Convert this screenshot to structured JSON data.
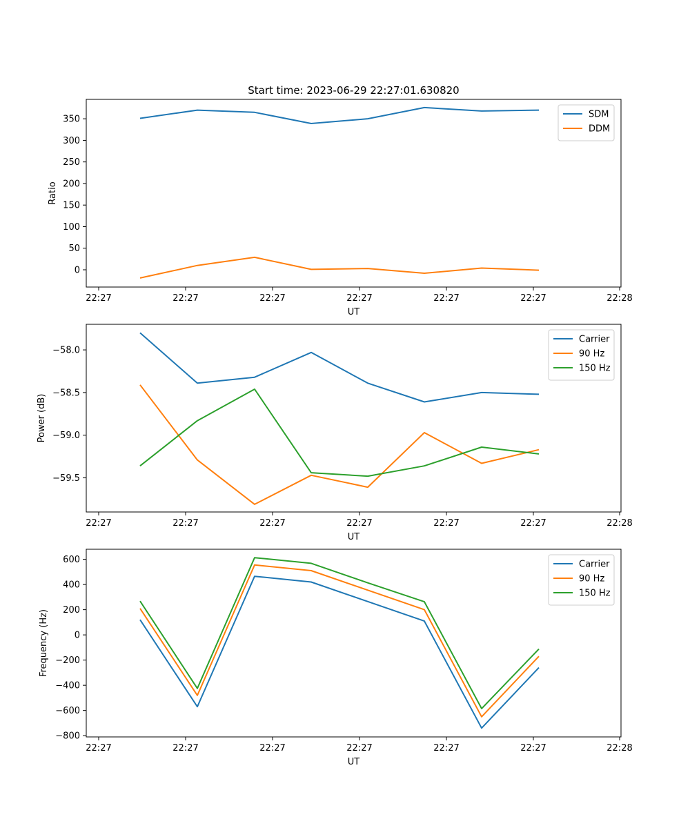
{
  "figure": {
    "title": "Start time: 2023-06-29 22:27:01.630820"
  },
  "chart_data": [
    {
      "type": "line",
      "title": "Start time: 2023-06-29 22:27:01.630820",
      "xlabel": "UT",
      "ylabel": "Ratio",
      "x_tick_labels": [
        "22:27",
        "22:27",
        "22:27",
        "22:27",
        "22:27",
        "22:27",
        "22:28"
      ],
      "y_ticks": [
        0,
        50,
        100,
        150,
        200,
        250,
        300,
        350
      ],
      "ylim": [
        -40,
        395
      ],
      "grid": false,
      "legend_position": "upper right",
      "series": [
        {
          "name": "SDM",
          "color": "#1f77b4",
          "values": [
            351,
            370,
            365,
            339,
            350,
            376,
            368,
            370
          ]
        },
        {
          "name": "DDM",
          "color": "#ff7f0e",
          "values": [
            -19,
            10,
            29,
            1,
            3,
            -8,
            4,
            -1
          ]
        }
      ]
    },
    {
      "type": "line",
      "title": "",
      "xlabel": "UT",
      "ylabel": "Power (dB)",
      "x_tick_labels": [
        "22:27",
        "22:27",
        "22:27",
        "22:27",
        "22:27",
        "22:27",
        "22:28"
      ],
      "y_ticks": [
        -58.0,
        -58.5,
        -59.0,
        -59.5
      ],
      "ylim": [
        -59.9,
        -57.7
      ],
      "grid": false,
      "legend_position": "upper right",
      "series": [
        {
          "name": "Carrier",
          "color": "#1f77b4",
          "values": [
            -57.8,
            -58.39,
            -58.32,
            -58.03,
            -58.39,
            -58.61,
            -58.5,
            -58.52
          ]
        },
        {
          "name": "90 Hz",
          "color": "#ff7f0e",
          "values": [
            -58.41,
            -59.29,
            -59.81,
            -59.47,
            -59.61,
            -58.97,
            -59.33,
            -59.17
          ]
        },
        {
          "name": "150 Hz",
          "color": "#2ca02c",
          "values": [
            -59.36,
            -58.83,
            -58.46,
            -59.44,
            -59.48,
            -59.36,
            -59.14,
            -59.22
          ]
        }
      ]
    },
    {
      "type": "line",
      "title": "",
      "xlabel": "UT",
      "ylabel": "Frequency (Hz)",
      "x_tick_labels": [
        "22:27",
        "22:27",
        "22:27",
        "22:27",
        "22:27",
        "22:27",
        "22:28"
      ],
      "y_ticks": [
        -800,
        -600,
        -400,
        -200,
        0,
        200,
        400,
        600
      ],
      "ylim": [
        -810,
        680
      ],
      "grid": false,
      "legend_position": "upper right",
      "series": [
        {
          "name": "Carrier",
          "color": "#1f77b4",
          "values": [
            120,
            -570,
            465,
            420,
            265,
            110,
            -740,
            -260
          ]
        },
        {
          "name": "90 Hz",
          "color": "#ff7f0e",
          "values": [
            210,
            -480,
            555,
            510,
            355,
            200,
            -650,
            -170
          ]
        },
        {
          "name": "150 Hz",
          "color": "#2ca02c",
          "values": [
            268,
            -425,
            613,
            568,
            413,
            263,
            -585,
            -112
          ]
        }
      ]
    }
  ]
}
